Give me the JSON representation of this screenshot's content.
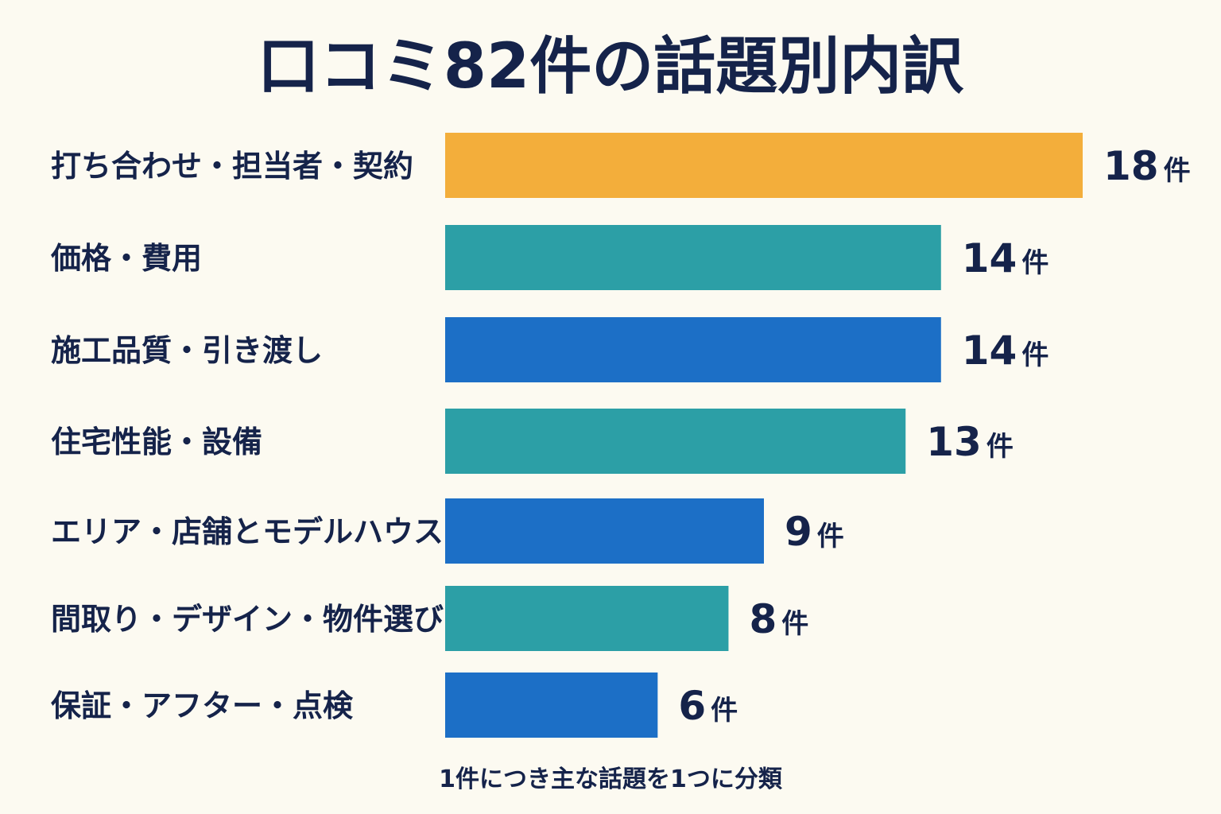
{
  "chart_data": {
    "type": "bar",
    "orientation": "horizontal",
    "title": "口コミ82件の話題別内訳",
    "categories": [
      "打ち合わせ・担当者・契約",
      "価格・費用",
      "施工品質・引き渡し",
      "住宅性能・設備",
      "エリア・店舗とモデルハウス",
      "間取り・デザイン・物件選び",
      "保証・アフター・点検"
    ],
    "values": [
      18,
      14,
      14,
      13,
      9,
      8,
      6
    ],
    "value_unit": "件",
    "bar_colors": [
      "#f3ae3b",
      "#2c9fa6",
      "#1c6fc6",
      "#2c9fa6",
      "#1c6fc6",
      "#2c9fa6",
      "#1c6fc6"
    ],
    "xlim": [
      0,
      18
    ],
    "grid": false,
    "legend": "none",
    "footnote": "1件につき主な話題を1つに分類"
  }
}
